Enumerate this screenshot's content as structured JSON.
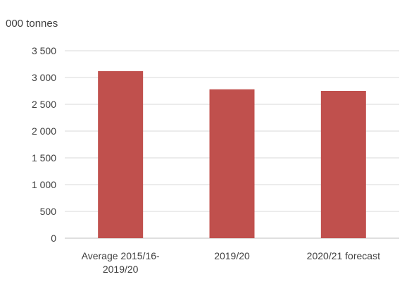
{
  "chart_data": {
    "type": "bar",
    "unit_label": "000 tonnes",
    "categories": [
      "Average 2015/16-\n2019/20",
      "2019/20",
      "2020/21 forecast"
    ],
    "values": [
      3120,
      2780,
      2750
    ],
    "ylim": [
      0,
      3500
    ],
    "yticks": [
      0,
      500,
      1000,
      1500,
      2000,
      2500,
      3000,
      3500
    ],
    "ytick_labels": [
      "0",
      "500",
      "1 000",
      "1 500",
      "2 000",
      "2 500",
      "3 000",
      "3 500"
    ],
    "grid": true,
    "bar_color": "#c0504d",
    "grid_color": "#d9d9d9",
    "axis_color": "#bfbfbf",
    "text_color": "#404040"
  }
}
